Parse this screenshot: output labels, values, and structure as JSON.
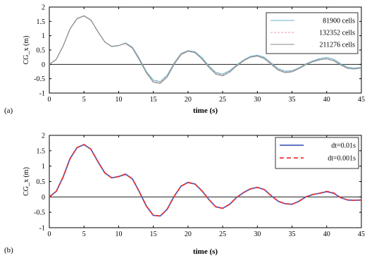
{
  "chart_data": [
    {
      "type": "line",
      "panel_label": "(a)",
      "xlabel": "time (s)",
      "ylabel": "CG_x (m)",
      "xlim": [
        0,
        45
      ],
      "ylim": [
        -1,
        2
      ],
      "xticks": [
        0,
        5,
        10,
        15,
        20,
        25,
        30,
        35,
        40,
        45
      ],
      "yticks": [
        -1,
        -0.5,
        0,
        0.5,
        1,
        1.5,
        2
      ],
      "ytick_labels": [
        "-1",
        "-0.5",
        "0",
        "0.5",
        "1",
        "1.5",
        "2"
      ],
      "zero_line": true,
      "legend_position": "top-right",
      "series": [
        {
          "name": "81900 cells",
          "color": "#5fb3c8",
          "dash": "solid",
          "x": [
            0,
            1,
            2,
            3,
            4,
            5,
            6,
            7,
            8,
            9,
            10,
            11,
            12,
            13,
            14,
            15,
            16,
            17,
            18,
            19,
            20,
            21,
            22,
            23,
            24,
            25,
            26,
            27,
            28,
            29,
            30,
            31,
            32,
            33,
            34,
            35,
            36,
            37,
            38,
            39,
            40,
            41,
            42,
            43,
            44,
            45
          ],
          "y": [
            0,
            0.18,
            0.65,
            1.25,
            1.6,
            1.7,
            1.55,
            1.15,
            0.78,
            0.62,
            0.65,
            0.75,
            0.6,
            0.2,
            -0.25,
            -0.55,
            -0.6,
            -0.38,
            0.05,
            0.38,
            0.48,
            0.44,
            0.24,
            -0.05,
            -0.28,
            -0.34,
            -0.22,
            -0.02,
            0.15,
            0.28,
            0.32,
            0.25,
            0.05,
            -0.15,
            -0.24,
            -0.22,
            -0.12,
            0.02,
            0.12,
            0.2,
            0.24,
            0.18,
            0.02,
            -0.1,
            -0.13,
            -0.1
          ]
        },
        {
          "name": "132352 cells",
          "color": "#e89aa8",
          "dash": "dashed",
          "x": [
            0,
            1,
            2,
            3,
            4,
            5,
            6,
            7,
            8,
            9,
            10,
            11,
            12,
            13,
            14,
            15,
            16,
            17,
            18,
            19,
            20,
            21,
            22,
            23,
            24,
            25,
            26,
            27,
            28,
            29,
            30,
            31,
            32,
            33,
            34,
            35,
            36,
            37,
            38,
            39,
            40,
            41,
            42,
            43,
            44,
            45
          ],
          "y": [
            0,
            0.18,
            0.65,
            1.25,
            1.6,
            1.7,
            1.55,
            1.15,
            0.78,
            0.62,
            0.66,
            0.74,
            0.58,
            0.17,
            -0.28,
            -0.6,
            -0.64,
            -0.42,
            0.02,
            0.36,
            0.47,
            0.42,
            0.2,
            -0.08,
            -0.32,
            -0.38,
            -0.25,
            -0.04,
            0.13,
            0.26,
            0.3,
            0.22,
            0.02,
            -0.18,
            -0.27,
            -0.24,
            -0.14,
            0.0,
            0.1,
            0.17,
            0.2,
            0.14,
            -0.01,
            -0.13,
            -0.15,
            -0.12
          ]
        },
        {
          "name": "211276 cells",
          "color": "#8a8a8a",
          "dash": "solid",
          "x": [
            0,
            1,
            2,
            3,
            4,
            5,
            6,
            7,
            8,
            9,
            10,
            11,
            12,
            13,
            14,
            15,
            16,
            17,
            18,
            19,
            20,
            21,
            22,
            23,
            24,
            25,
            26,
            27,
            28,
            29,
            30,
            31,
            32,
            33,
            34,
            35,
            36,
            37,
            38,
            39,
            40,
            41,
            42,
            43,
            44,
            45
          ],
          "y": [
            0,
            0.17,
            0.64,
            1.24,
            1.59,
            1.69,
            1.54,
            1.14,
            0.78,
            0.63,
            0.66,
            0.73,
            0.56,
            0.15,
            -0.3,
            -0.62,
            -0.66,
            -0.44,
            0.0,
            0.34,
            0.46,
            0.41,
            0.19,
            -0.1,
            -0.34,
            -0.4,
            -0.27,
            -0.06,
            0.12,
            0.25,
            0.29,
            0.2,
            0.0,
            -0.2,
            -0.29,
            -0.26,
            -0.15,
            -0.01,
            0.09,
            0.16,
            0.19,
            0.13,
            -0.02,
            -0.14,
            -0.16,
            -0.13
          ]
        }
      ]
    },
    {
      "type": "line",
      "panel_label": "(b)",
      "xlabel": "time (s)",
      "ylabel": "CG_x (m)",
      "xlim": [
        0,
        45
      ],
      "ylim": [
        -1,
        2
      ],
      "xticks": [
        0,
        5,
        10,
        15,
        20,
        25,
        30,
        35,
        40,
        45
      ],
      "yticks": [
        -1,
        -0.5,
        0,
        0.5,
        1,
        1.5,
        2
      ],
      "ytick_labels": [
        "-1",
        "-0.5",
        "0",
        "0.5",
        "1",
        "1.5",
        "2"
      ],
      "zero_line": true,
      "legend_position": "top-right",
      "series": [
        {
          "name": "dt=0.01s",
          "color": "#4a5fbf",
          "dash": "solid",
          "x": [
            0,
            1,
            2,
            3,
            4,
            5,
            6,
            7,
            8,
            9,
            10,
            11,
            12,
            13,
            14,
            15,
            16,
            17,
            18,
            19,
            20,
            21,
            22,
            23,
            24,
            25,
            26,
            27,
            28,
            29,
            30,
            31,
            32,
            33,
            34,
            35,
            36,
            37,
            38,
            39,
            40,
            41,
            42,
            43,
            44,
            45
          ],
          "y": [
            0,
            0.18,
            0.65,
            1.25,
            1.6,
            1.7,
            1.55,
            1.15,
            0.78,
            0.62,
            0.66,
            0.74,
            0.58,
            0.16,
            -0.3,
            -0.6,
            -0.62,
            -0.4,
            0.02,
            0.35,
            0.47,
            0.42,
            0.2,
            -0.08,
            -0.32,
            -0.37,
            -0.24,
            -0.02,
            0.14,
            0.26,
            0.31,
            0.24,
            0.04,
            -0.14,
            -0.22,
            -0.24,
            -0.14,
            0.0,
            0.08,
            0.12,
            0.17,
            0.12,
            -0.02,
            -0.1,
            -0.11,
            -0.1
          ]
        },
        {
          "name": "dt=0.001s",
          "color": "#ee3333",
          "dash": "dashed",
          "x": [
            0,
            1,
            2,
            3,
            4,
            5,
            6,
            7,
            8,
            9,
            10,
            11,
            12,
            13,
            14,
            15,
            16,
            17,
            18,
            19,
            20,
            21,
            22,
            23,
            24,
            25,
            26,
            27,
            28,
            29,
            30,
            31,
            32,
            33,
            34,
            35,
            36,
            37,
            38,
            39,
            40,
            41,
            42,
            43,
            44,
            45
          ],
          "y": [
            0,
            0.18,
            0.65,
            1.25,
            1.6,
            1.7,
            1.55,
            1.15,
            0.78,
            0.62,
            0.66,
            0.74,
            0.58,
            0.16,
            -0.3,
            -0.6,
            -0.62,
            -0.4,
            0.02,
            0.35,
            0.47,
            0.42,
            0.2,
            -0.08,
            -0.32,
            -0.37,
            -0.24,
            -0.02,
            0.14,
            0.26,
            0.31,
            0.24,
            0.04,
            -0.14,
            -0.22,
            -0.24,
            -0.14,
            0.0,
            0.08,
            0.12,
            0.18,
            0.13,
            -0.02,
            -0.1,
            -0.11,
            -0.1
          ]
        }
      ]
    }
  ]
}
